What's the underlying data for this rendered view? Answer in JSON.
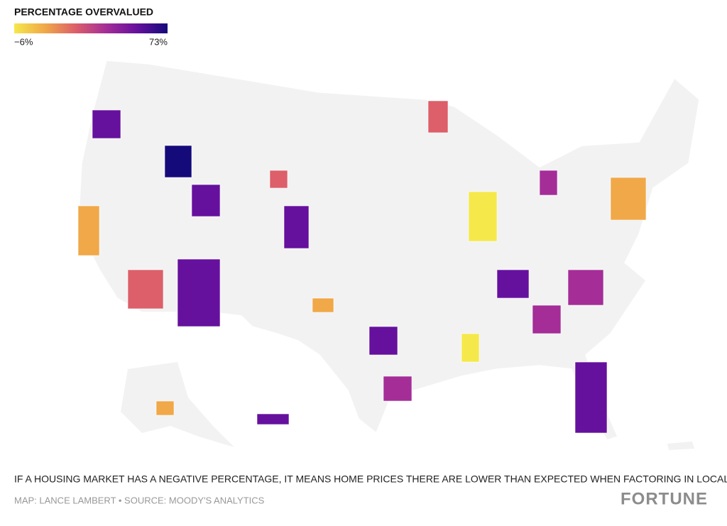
{
  "legend": {
    "title": "PERCENTAGE OVERVALUED",
    "min_label": "−6%",
    "max_label": "73%",
    "colors": [
      "#f5e84a",
      "#f0a848",
      "#dc5f6a",
      "#a42d98",
      "#66109e",
      "#150a7a"
    ]
  },
  "note": "IF A HOUSING MARKET HAS A NEGATIVE PERCENTAGE, IT MEANS HOME PRICES THERE ARE LOWER THAN EXPECTED WHEN FACTORING IN LOCAL INCOMES.",
  "source": "MAP: LANCE LAMBERT • SOURCE: MOODY'S ANALYTICS",
  "brand": "FORTUNE"
}
